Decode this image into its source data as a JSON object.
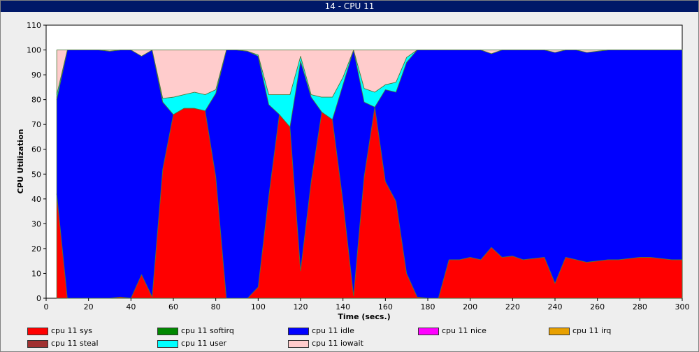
{
  "window": {
    "title": "14 - CPU 11"
  },
  "chart_data": {
    "type": "area",
    "stacked": true,
    "xlabel": "Time (secs.)",
    "ylabel": "CPU Utilization",
    "xlim": [
      0,
      300
    ],
    "ylim": [
      0,
      110
    ],
    "xticks": [
      0,
      20,
      40,
      60,
      80,
      100,
      120,
      140,
      160,
      180,
      200,
      220,
      240,
      260,
      280,
      300
    ],
    "yticks": [
      0,
      10,
      20,
      30,
      40,
      50,
      60,
      70,
      80,
      90,
      100,
      110
    ],
    "grid": false,
    "legend_position": "bottom",
    "x": [
      5,
      10,
      15,
      20,
      25,
      30,
      35,
      40,
      45,
      50,
      55,
      60,
      65,
      70,
      75,
      80,
      85,
      90,
      95,
      100,
      105,
      110,
      115,
      120,
      125,
      130,
      135,
      140,
      145,
      150,
      155,
      160,
      165,
      170,
      175,
      180,
      185,
      190,
      195,
      200,
      205,
      210,
      215,
      220,
      225,
      230,
      235,
      240,
      245,
      250,
      255,
      260,
      265,
      270,
      275,
      280,
      285,
      290,
      295,
      300
    ],
    "series": [
      {
        "name": "cpu 11 sys",
        "color": "#ff0000",
        "values": [
          42,
          0,
          0,
          0,
          0,
          0,
          0.5,
          0,
          9.5,
          0.5,
          52,
          74,
          76.5,
          76.5,
          75.5,
          49,
          0,
          0,
          0,
          4.5,
          41,
          74,
          69,
          11,
          47,
          75,
          72,
          39,
          1,
          49,
          77,
          47,
          39,
          10,
          0.5,
          0,
          0,
          15.5,
          15.5,
          16.5,
          15.5,
          20.5,
          16.5,
          17,
          15.5,
          16,
          16.5,
          6,
          16.5,
          15.5,
          14.5,
          15,
          15.5,
          15.5,
          16,
          16.5,
          16.5,
          16,
          15.5,
          15.5
        ]
      },
      {
        "name": "cpu 11 softirq",
        "color": "#008800",
        "values": [
          0,
          0,
          0,
          0,
          0,
          0,
          0,
          0,
          0,
          0,
          0,
          0,
          0,
          0,
          0,
          0,
          0,
          0,
          0,
          0,
          0,
          0,
          0,
          0,
          0,
          0,
          0,
          0,
          0,
          0,
          0,
          0,
          0,
          0,
          0,
          0,
          0,
          0,
          0,
          0,
          0,
          0,
          0,
          0,
          0,
          0,
          0,
          0,
          0,
          0,
          0,
          0,
          0,
          0,
          0,
          0,
          0,
          0,
          0,
          0
        ]
      },
      {
        "name": "cpu 11 idle",
        "color": "#0000ff",
        "values": [
          38,
          100,
          100,
          100,
          100,
          99.5,
          99.5,
          100,
          88,
          99.5,
          27,
          0,
          0,
          0,
          0,
          33.5,
          100,
          100,
          99.5,
          93,
          37,
          0,
          0,
          84.5,
          34,
          0,
          0,
          47,
          99,
          30,
          0,
          37,
          44,
          85,
          99.5,
          100,
          100,
          84.5,
          84.5,
          83.5,
          84.5,
          78,
          83.5,
          83,
          84.5,
          84,
          83.5,
          93,
          83.5,
          84.5,
          84.5,
          84.5,
          84.5,
          84.5,
          84,
          83.5,
          83.5,
          84,
          84.5,
          84.5
        ]
      },
      {
        "name": "cpu 11 nice",
        "color": "#ff00ff",
        "values": [
          0,
          0,
          0,
          0,
          0,
          0,
          0,
          0,
          0,
          0,
          0,
          0,
          0,
          0,
          0,
          0,
          0,
          0,
          0,
          0,
          0,
          0,
          0,
          0,
          0,
          0,
          0,
          0,
          0,
          0,
          0,
          0,
          0,
          0,
          0,
          0,
          0,
          0,
          0,
          0,
          0,
          0,
          0,
          0,
          0,
          0,
          0,
          0,
          0,
          0,
          0,
          0,
          0,
          0,
          0,
          0,
          0,
          0,
          0,
          0
        ]
      },
      {
        "name": "cpu 11 irq",
        "color": "#e8a000",
        "values": [
          0,
          0,
          0,
          0,
          0,
          0,
          0,
          0,
          0,
          0,
          0,
          0,
          0,
          0,
          0,
          0,
          0,
          0,
          0,
          0,
          0,
          0,
          0,
          0,
          0,
          0,
          0,
          0,
          0,
          0,
          0,
          0,
          0,
          0,
          0,
          0,
          0,
          0,
          0,
          0,
          0,
          0,
          0,
          0,
          0,
          0,
          0,
          0,
          0,
          0,
          0,
          0,
          0,
          0,
          0,
          0,
          0,
          0,
          0,
          0
        ]
      },
      {
        "name": "cpu 11 steal",
        "color": "#a03030",
        "values": [
          0,
          0,
          0,
          0,
          0,
          0,
          0,
          0,
          0,
          0,
          0,
          0,
          0,
          0,
          0,
          0,
          0,
          0,
          0,
          0,
          0,
          0,
          0,
          0,
          0,
          0,
          0,
          0,
          0,
          0,
          0,
          0,
          0,
          0,
          0,
          0,
          0,
          0,
          0,
          0,
          0,
          0,
          0,
          0,
          0,
          0,
          0,
          0,
          0,
          0,
          0,
          0,
          0,
          0,
          0,
          0,
          0,
          0,
          0,
          0
        ]
      },
      {
        "name": "cpu 11 user",
        "color": "#00ffff",
        "values": [
          2,
          0,
          0,
          0,
          0,
          0,
          0,
          0,
          0,
          0,
          1.5,
          7,
          5.5,
          6.5,
          6.5,
          1.5,
          0,
          0,
          0,
          0.5,
          4,
          8,
          13,
          2,
          1,
          6,
          9,
          3,
          0,
          5.5,
          6,
          2,
          4,
          2,
          0,
          0,
          0,
          0,
          0,
          0,
          0,
          0,
          0,
          0,
          0,
          0,
          0,
          0,
          0,
          0,
          0,
          0,
          0,
          0,
          0,
          0,
          0,
          0,
          0,
          0
        ]
      },
      {
        "name": "cpu 11 iowait",
        "color": "#ffcccc",
        "values": [
          18,
          0,
          0,
          0,
          0,
          0.5,
          0,
          0,
          2.5,
          0,
          19.5,
          19,
          18,
          17,
          18,
          16,
          0,
          0,
          0.5,
          2,
          18,
          18,
          18,
          2.5,
          18,
          19,
          19,
          11,
          0,
          15.5,
          17,
          14,
          13,
          3,
          0,
          0,
          0,
          0,
          0,
          0,
          0,
          1.5,
          0,
          0,
          0,
          0,
          0,
          1,
          0,
          0,
          1,
          0.5,
          0,
          0,
          0,
          0,
          0,
          0,
          0,
          0
        ]
      }
    ]
  }
}
